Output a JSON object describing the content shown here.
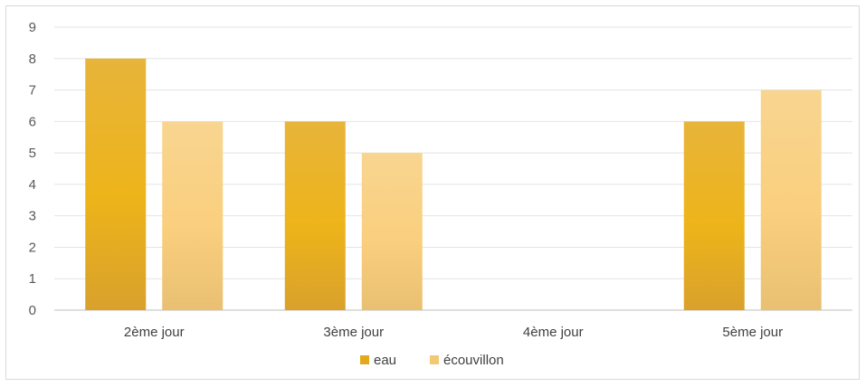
{
  "chart_data": {
    "type": "bar",
    "categories": [
      "2ème jour",
      "3ème jour",
      "4ème jour",
      "5ème jour"
    ],
    "series": [
      {
        "name": "eau",
        "values": [
          8,
          6,
          0,
          6
        ],
        "color": "#E2A91C"
      },
      {
        "name": "écouvillon",
        "values": [
          6,
          5,
          0,
          7
        ],
        "color": "#F3C872"
      }
    ],
    "yticks": [
      0,
      1,
      2,
      3,
      4,
      5,
      6,
      7,
      8,
      9
    ],
    "ylim": [
      0,
      9
    ],
    "grid": true,
    "legend_position": "bottom-center"
  }
}
